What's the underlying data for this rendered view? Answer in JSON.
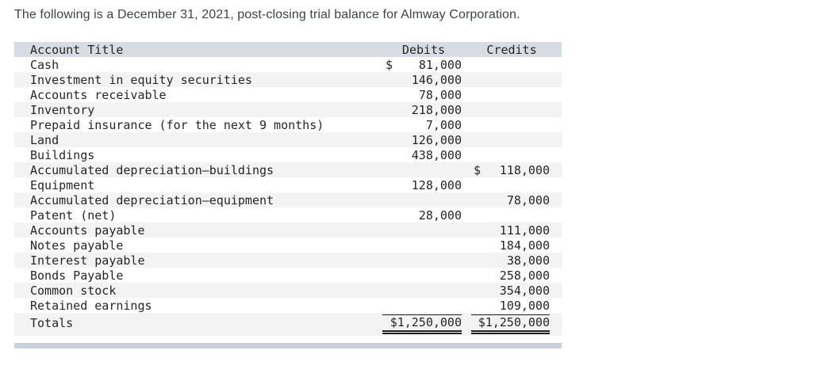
{
  "page": {
    "intro": "The following is a December 31, 2021, post-closing trial balance for Almway Corporation."
  },
  "table": {
    "headers": {
      "account": "Account Title",
      "debits": "Debits",
      "credits": "Credits"
    },
    "rows": [
      {
        "title": "Cash",
        "debit_symbol": "$",
        "debit": "81,000",
        "credit_symbol": "",
        "credit": ""
      },
      {
        "title": "Investment in equity securities",
        "debit_symbol": "",
        "debit": "146,000",
        "credit_symbol": "",
        "credit": ""
      },
      {
        "title": "Accounts receivable",
        "debit_symbol": "",
        "debit": "78,000",
        "credit_symbol": "",
        "credit": ""
      },
      {
        "title": "Inventory",
        "debit_symbol": "",
        "debit": "218,000",
        "credit_symbol": "",
        "credit": ""
      },
      {
        "title": "Prepaid insurance (for the next 9 months)",
        "debit_symbol": "",
        "debit": "7,000",
        "credit_symbol": "",
        "credit": ""
      },
      {
        "title": "Land",
        "debit_symbol": "",
        "debit": "126,000",
        "credit_symbol": "",
        "credit": ""
      },
      {
        "title": "Buildings",
        "debit_symbol": "",
        "debit": "438,000",
        "credit_symbol": "",
        "credit": ""
      },
      {
        "title": "Accumulated depreciation—buildings",
        "debit_symbol": "",
        "debit": "",
        "credit_symbol": "$",
        "credit": "118,000"
      },
      {
        "title": "Equipment",
        "debit_symbol": "",
        "debit": "128,000",
        "credit_symbol": "",
        "credit": ""
      },
      {
        "title": "Accumulated depreciation—equipment",
        "debit_symbol": "",
        "debit": "",
        "credit_symbol": "",
        "credit": "78,000"
      },
      {
        "title": "Patent (net)",
        "debit_symbol": "",
        "debit": "28,000",
        "credit_symbol": "",
        "credit": ""
      },
      {
        "title": "Accounts payable",
        "debit_symbol": "",
        "debit": "",
        "credit_symbol": "",
        "credit": "111,000"
      },
      {
        "title": "Notes payable",
        "debit_symbol": "",
        "debit": "",
        "credit_symbol": "",
        "credit": "184,000"
      },
      {
        "title": "Interest payable",
        "debit_symbol": "",
        "debit": "",
        "credit_symbol": "",
        "credit": "38,000"
      },
      {
        "title": "Bonds Payable",
        "debit_symbol": "",
        "debit": "",
        "credit_symbol": "",
        "credit": "258,000"
      },
      {
        "title": "Common stock",
        "debit_symbol": "",
        "debit": "",
        "credit_symbol": "",
        "credit": "354,000"
      },
      {
        "title": "Retained earnings",
        "debit_symbol": "",
        "debit": "",
        "credit_symbol": "",
        "credit": "109,000"
      }
    ],
    "totals": {
      "label": "Totals",
      "debit": "$1,250,000",
      "credit": "$1,250,000"
    }
  },
  "colors": {
    "header_bg": "#d7dbe3",
    "stripe_bg": "#f3f3f3",
    "scrollbar_bg": "#c9d1dd",
    "text_color": "#262626",
    "title_color": "#3f4247",
    "rule_color": "#1f1f1f"
  }
}
